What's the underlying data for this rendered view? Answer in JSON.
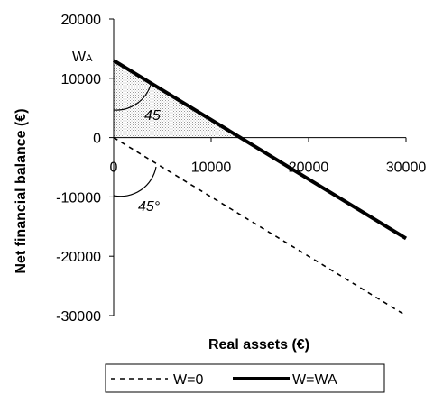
{
  "chart_data": {
    "type": "line",
    "xlabel": "Real assets (€)",
    "ylabel": "Net financial balance (€)",
    "xlim": [
      0,
      30000
    ],
    "ylim": [
      -30000,
      20000
    ],
    "x_ticks": [
      0,
      10000,
      20000,
      30000
    ],
    "y_ticks": [
      20000,
      10000,
      0,
      -10000,
      -20000,
      -30000
    ],
    "x_tick_labels": [
      "0",
      "10000",
      "20000",
      "30000"
    ],
    "y_tick_labels": [
      "20000",
      "10000",
      "0",
      "-10000",
      "-20000",
      "-30000"
    ],
    "grid": false,
    "legend_position": "bottom",
    "series": [
      {
        "name": "W=0",
        "style": "dashed",
        "color": "#000000",
        "x": [
          0,
          30000
        ],
        "y": [
          0,
          -30000
        ]
      },
      {
        "name": "W=WA",
        "style": "solid-thick",
        "color": "#000000",
        "x": [
          0,
          30000
        ],
        "y": [
          13000,
          -17000
        ]
      }
    ],
    "shaded_region": {
      "fill": "dotted gray",
      "vertices": [
        [
          0,
          0
        ],
        [
          0,
          13000
        ],
        [
          13000,
          0
        ]
      ]
    },
    "annotations": {
      "wa_main": "W",
      "wa_sub": "A",
      "angle_upper": "45",
      "angle_lower": "45°"
    }
  }
}
